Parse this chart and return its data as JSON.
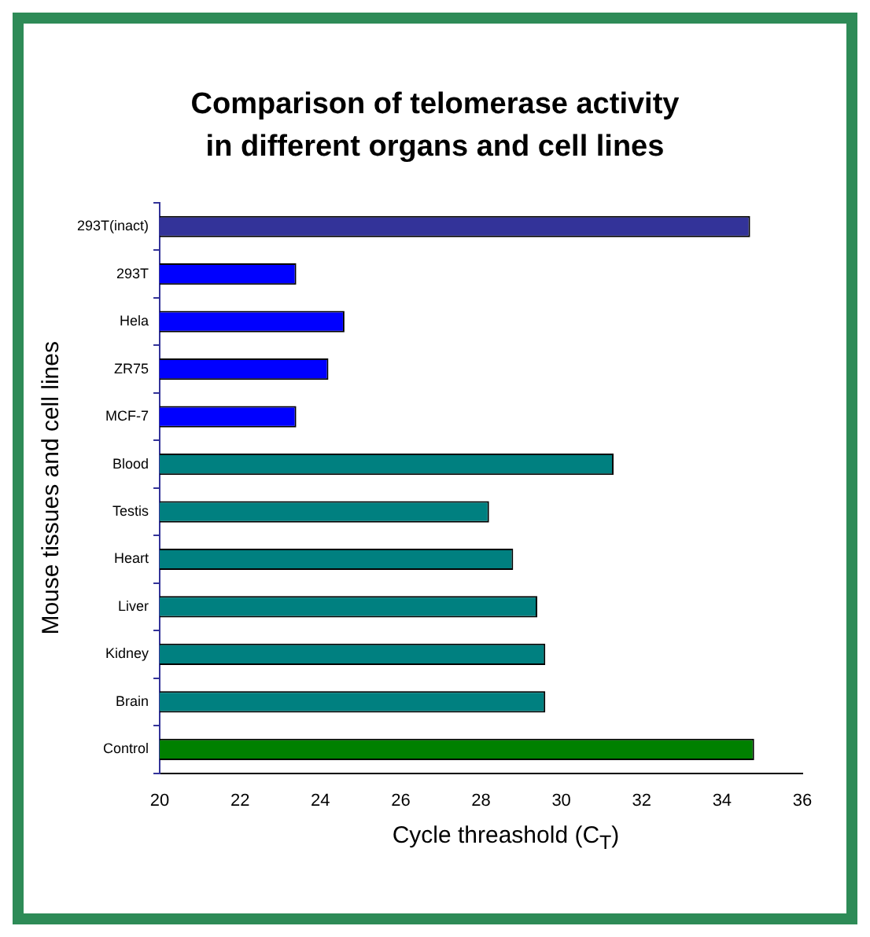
{
  "chart_data": {
    "type": "bar",
    "orientation": "horizontal",
    "title": "Comparison of telomerase activity in different organs and cell lines",
    "xlabel": "Cycle threashold (C$_{T}$)",
    "ylabel": "Mouse tissues and cell lines",
    "categories": [
      "293T(inact)",
      "293T",
      "Hela",
      "ZR75",
      "MCF-7",
      "Blood",
      "Testis",
      "Heart",
      "Liver",
      "Kidney",
      "Brain",
      "Control"
    ],
    "values": [
      34.7,
      23.4,
      24.6,
      24.2,
      23.4,
      31.3,
      28.2,
      28.8,
      29.4,
      29.6,
      29.6,
      34.8
    ],
    "colors": [
      "#333399",
      "#0000ff",
      "#0000ff",
      "#0000ff",
      "#0000ff",
      "#008080",
      "#008080",
      "#008080",
      "#008080",
      "#008080",
      "#008080",
      "#008000"
    ],
    "xlim": [
      20,
      36
    ],
    "xticks": [
      20,
      22,
      24,
      26,
      28,
      30,
      32,
      34,
      36
    ],
    "grid": false
  }
}
